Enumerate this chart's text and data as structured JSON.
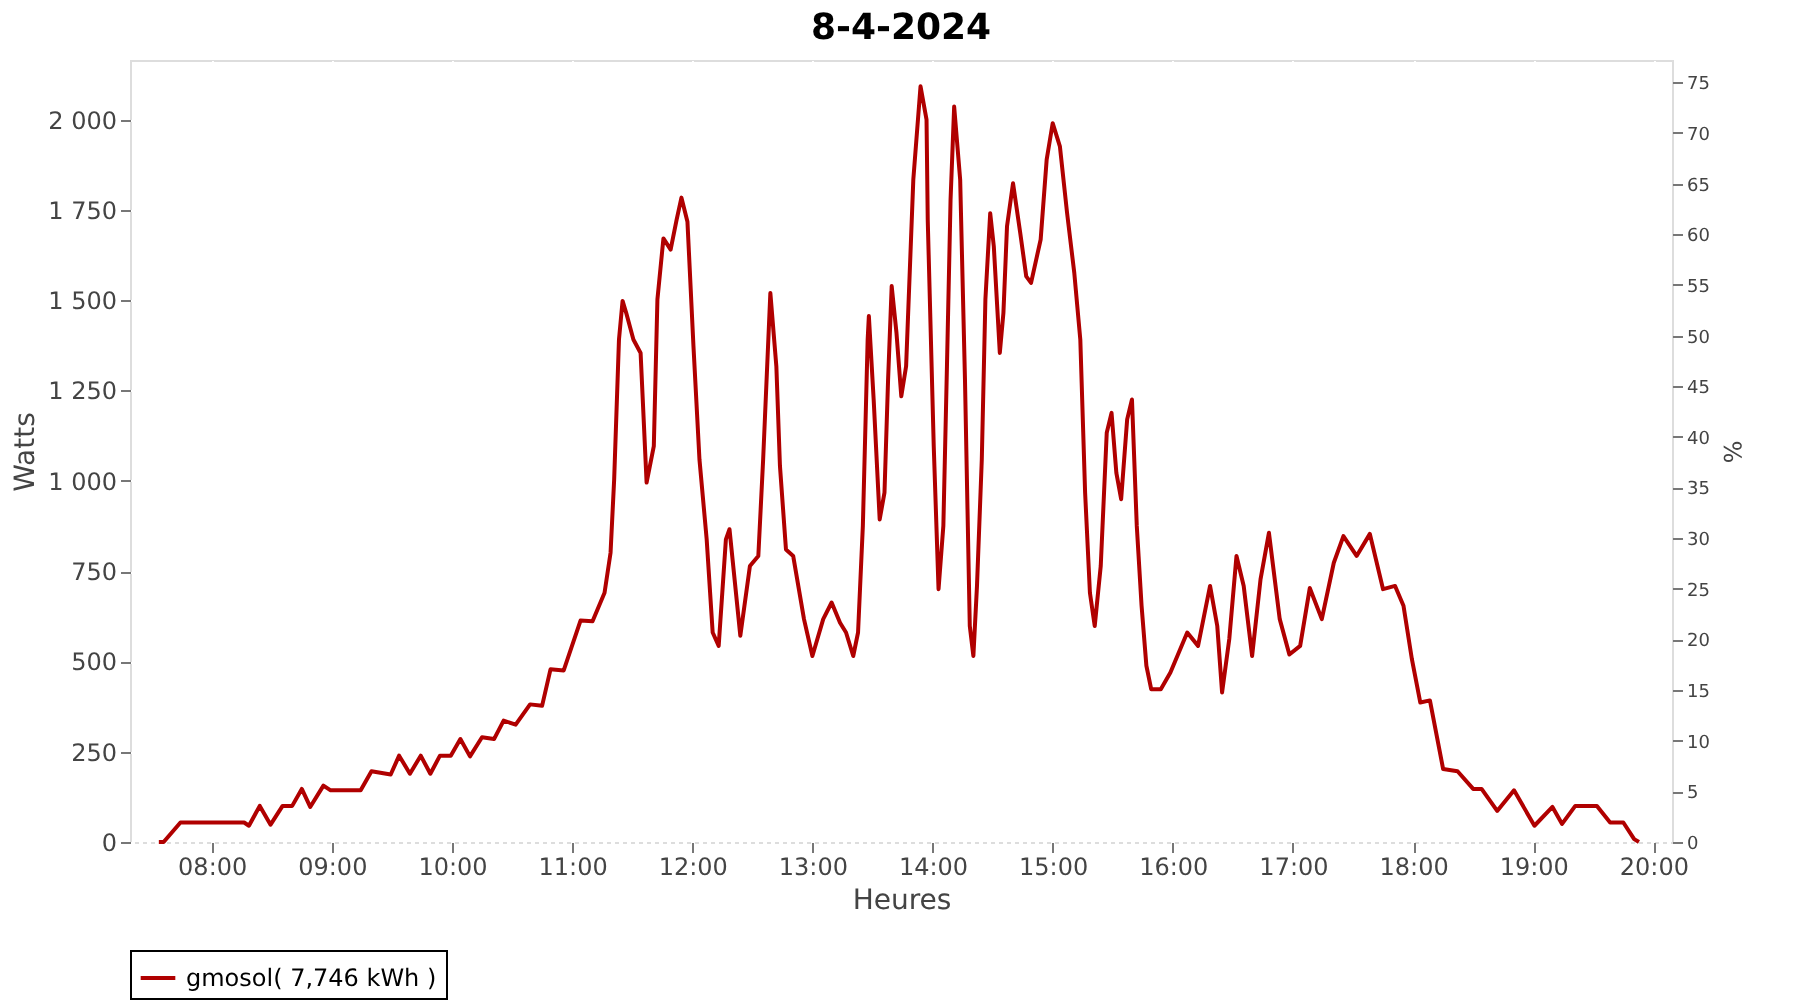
{
  "chart_data": {
    "type": "line",
    "title": "8-4-2024",
    "xlabel": "Heures",
    "ylabel": "Watts",
    "y2label": "%",
    "xlim": [
      7.32,
      20.155
    ],
    "xticks": [
      {
        "value": 8,
        "label": "08:00"
      },
      {
        "value": 9,
        "label": "09:00"
      },
      {
        "value": 10,
        "label": "10:00"
      },
      {
        "value": 11,
        "label": "11:00"
      },
      {
        "value": 12,
        "label": "12:00"
      },
      {
        "value": 13,
        "label": "13:00"
      },
      {
        "value": 14,
        "label": "14:00"
      },
      {
        "value": 15,
        "label": "15:00"
      },
      {
        "value": 16,
        "label": "16:00"
      },
      {
        "value": 17,
        "label": "17:00"
      },
      {
        "value": 18,
        "label": "18:00"
      },
      {
        "value": 19,
        "label": "19:00"
      },
      {
        "value": 20,
        "label": "20:00"
      }
    ],
    "ylim": [
      0,
      2165
    ],
    "yticks": [
      0,
      250,
      500,
      750,
      {
        "value": 1000,
        "label": "1 000"
      },
      {
        "value": 1250,
        "label": "1 250"
      },
      {
        "value": 1500,
        "label": "1 500"
      },
      {
        "value": 1750,
        "label": "1 750"
      },
      {
        "value": 2000,
        "label": "2 000"
      }
    ],
    "y2lim": [
      0,
      77.2
    ],
    "y2ticks": [
      0,
      5,
      10,
      15,
      20,
      25,
      30,
      35,
      40,
      45,
      50,
      55,
      60,
      65,
      70,
      75
    ],
    "grid": true,
    "legend": "bottom",
    "marker": "none",
    "line_style": "solid",
    "series": [
      {
        "name": "gmosol( 7,746 kWh )",
        "color": "#b00000",
        "x": [
          7.56,
          7.6,
          7.74,
          8.27,
          8.31,
          8.4,
          8.49,
          8.59,
          8.67,
          8.75,
          8.82,
          8.93,
          8.99,
          9.24,
          9.33,
          9.49,
          9.56,
          9.65,
          9.74,
          9.82,
          9.9,
          9.99,
          10.07,
          10.15,
          10.25,
          10.35,
          10.43,
          10.53,
          10.65,
          10.75,
          10.82,
          10.93,
          11.07,
          11.17,
          11.27,
          11.32,
          11.35,
          11.39,
          11.42,
          11.45,
          11.51,
          11.57,
          11.62,
          11.68,
          11.71,
          11.76,
          11.82,
          11.87,
          11.91,
          11.96,
          12.01,
          12.06,
          12.12,
          12.17,
          12.22,
          12.28,
          12.31,
          12.4,
          12.48,
          12.55,
          12.59,
          12.65,
          12.7,
          12.73,
          12.78,
          12.84,
          12.93,
          13.0,
          13.09,
          13.16,
          13.23,
          13.28,
          13.34,
          13.38,
          13.42,
          13.46,
          13.47,
          13.51,
          13.56,
          13.6,
          13.63,
          13.66,
          13.7,
          13.74,
          13.78,
          13.84,
          13.9,
          13.95,
          13.96,
          14.01,
          14.05,
          14.09,
          14.12,
          14.15,
          14.18,
          14.23,
          14.27,
          14.31,
          14.34,
          14.37,
          14.41,
          14.44,
          14.48,
          14.51,
          14.56,
          14.59,
          14.62,
          14.67,
          14.73,
          14.78,
          14.82,
          14.9,
          14.95,
          15.0,
          15.06,
          15.12,
          15.18,
          15.23,
          15.27,
          15.31,
          15.35,
          15.4,
          15.45,
          15.49,
          15.53,
          15.57,
          15.62,
          15.66,
          15.7,
          15.74,
          15.78,
          15.82,
          15.9,
          15.98,
          16.12,
          16.21,
          16.31,
          16.37,
          16.41,
          16.47,
          16.53,
          16.59,
          16.66,
          16.73,
          16.8,
          16.89,
          16.97,
          17.06,
          17.14,
          17.24,
          17.34,
          17.42,
          17.53,
          17.64,
          17.75,
          17.85,
          17.92,
          17.99,
          18.06,
          18.14,
          18.25,
          18.37,
          18.5,
          18.57,
          18.7,
          18.84,
          19.01,
          19.16,
          19.24,
          19.35,
          19.53,
          19.64,
          19.75,
          19.84,
          19.88
        ],
        "values": [
          0,
          0,
          54,
          54,
          45,
          100,
          48,
          100,
          100,
          147,
          97,
          156,
          143,
          143,
          196,
          187,
          239,
          189,
          239,
          189,
          239,
          239,
          285,
          237,
          290,
          285,
          336,
          325,
          381,
          377,
          478,
          475,
          613,
          611,
          690,
          801,
          1004,
          1391,
          1498,
          1465,
          1391,
          1354,
          995,
          1096,
          1502,
          1671,
          1640,
          1723,
          1784,
          1717,
          1373,
          1059,
          838,
          580,
          543,
          838,
          866,
          571,
          764,
          792,
          1059,
          1520,
          1317,
          1041,
          810,
          792,
          617,
          515,
          617,
          663,
          607,
          580,
          515,
          580,
          875,
          1391,
          1456,
          1225,
          893,
          967,
          1280,
          1539,
          1409,
          1234,
          1317,
          1834,
          2092,
          2000,
          1723,
          1096,
          700,
          875,
          1317,
          1778,
          2036,
          1834,
          1280,
          598,
          515,
          709,
          1059,
          1502,
          1741,
          1649,
          1354,
          1465,
          1705,
          1824,
          1686,
          1566,
          1548,
          1668,
          1889,
          1990,
          1926,
          1741,
          1575,
          1391,
          967,
          690,
          598,
          764,
          1133,
          1188,
          1022,
          949,
          1170,
          1225,
          875,
          654,
          488,
          423,
          423,
          469,
          580,
          543,
          709,
          598,
          414,
          562,
          792,
          709,
          515,
          727,
          856,
          617,
          519,
          543,
          703,
          617,
          773,
          847,
          792,
          853,
          700,
          709,
          654,
          506,
          386,
          392,
          202,
          196,
          147,
          147,
          86,
          143,
          45,
          97,
          50,
          100,
          100,
          54,
          54,
          8,
          0
        ]
      }
    ]
  }
}
